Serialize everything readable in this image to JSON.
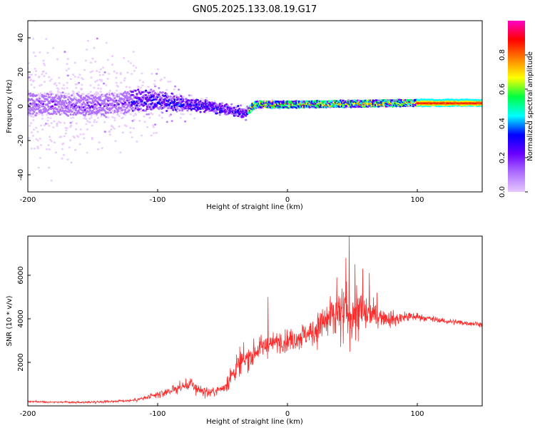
{
  "figure_title": "GN05.2025.133.08.19.G17",
  "colors": {
    "background": "#ffffff",
    "snr_line": "#ff2a2a",
    "axis": "#000000",
    "spectral_colormap": [
      "#e6c8ff",
      "#b070ff",
      "#6a00ff",
      "#0000ff",
      "#00ffff",
      "#00ff40",
      "#ffff00",
      "#ff8000",
      "#ff0000",
      "#ff00c8"
    ]
  },
  "chart_data": [
    {
      "type": "heatmap",
      "xlabel": "Height of straight line (km)",
      "ylabel": "Frequency (Hz)",
      "xlim": [
        -200,
        150
      ],
      "ylim": [
        -50,
        50
      ],
      "x_ticks": [
        -200,
        -100,
        0,
        100
      ],
      "y_ticks": [
        -40,
        -20,
        0,
        20,
        40
      ],
      "grid": false,
      "colorbar": {
        "label": "Normalized spectral amplitude",
        "range": [
          0,
          1
        ],
        "ticks": [
          "0.0",
          "0.2",
          "0.4",
          "0.6",
          "0.8"
        ]
      },
      "ridge": {
        "x": [
          -200,
          -150,
          -120,
          -100,
          -80,
          -60,
          -50,
          -40,
          -32,
          -25,
          0,
          50,
          100,
          150
        ],
        "freq": [
          1.5,
          0.5,
          3.0,
          3.5,
          1.5,
          0.0,
          -1.5,
          -3.0,
          -4.0,
          1.0,
          1.0,
          1.5,
          2.0,
          2.0
        ],
        "spread_hz": [
          28,
          24,
          18,
          12,
          7,
          4,
          3,
          2,
          2,
          2,
          2,
          2,
          2,
          2
        ]
      }
    },
    {
      "type": "line",
      "xlabel": "Height of straight line (km)",
      "ylabel": "SNR (10 * v/v)",
      "xlim": [
        -200,
        150
      ],
      "ylim": [
        0,
        7800
      ],
      "x_ticks": [
        -200,
        -100,
        0,
        100
      ],
      "y_ticks": [
        2000,
        4000,
        6000
      ],
      "grid": false,
      "series": [
        {
          "x": [
            -200,
            -180,
            -160,
            -140,
            -120,
            -110,
            -100,
            -90,
            -80,
            -75,
            -70,
            -60,
            -50,
            -45,
            -40,
            -35,
            -30,
            -25,
            -20,
            -15,
            -10,
            -5,
            0,
            10,
            20,
            25,
            30,
            35,
            40,
            45,
            48,
            50,
            55,
            60,
            65,
            70,
            75,
            80,
            85,
            90,
            95,
            100,
            110,
            120,
            130,
            140,
            150
          ],
          "values": [
            200,
            180,
            160,
            200,
            250,
            350,
            500,
            700,
            900,
            1000,
            800,
            600,
            800,
            1200,
            1700,
            2000,
            2200,
            2500,
            2700,
            2800,
            2900,
            3000,
            3000,
            3200,
            3400,
            3700,
            3900,
            4000,
            4100,
            4200,
            4300,
            4300,
            4300,
            4200,
            4200,
            4100,
            4100,
            4000,
            4000,
            4100,
            4100,
            4100,
            4000,
            3900,
            3850,
            3800,
            3750
          ],
          "noise_amplitude": [
            60,
            60,
            60,
            80,
            100,
            150,
            200,
            300,
            400,
            500,
            400,
            300,
            400,
            600,
            800,
            900,
            900,
            800,
            700,
            600,
            600,
            700,
            800,
            800,
            900,
            1200,
            1400,
            1600,
            1800,
            2000,
            2200,
            2200,
            1600,
            1200,
            900,
            700,
            600,
            500,
            450,
            400,
            350,
            250,
            200,
            180,
            170,
            160,
            150
          ],
          "spikes": [
            {
              "x": -15,
              "y": 5000
            },
            {
              "x": 38,
              "y": 5900
            },
            {
              "x": 45,
              "y": 6800
            },
            {
              "x": 47.5,
              "y": 7800
            },
            {
              "x": 52,
              "y": 6500
            },
            {
              "x": 58,
              "y": 6300
            },
            {
              "x": 63,
              "y": 6100
            },
            {
              "x": 69,
              "y": 5200
            }
          ]
        }
      ]
    }
  ]
}
